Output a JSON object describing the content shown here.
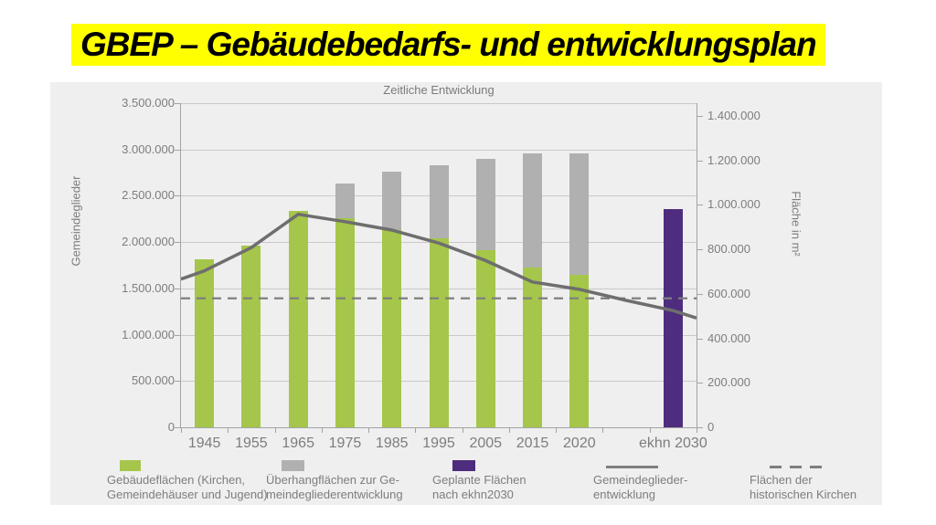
{
  "slide": {
    "title": "GBEP – Gebäudebedarfs- und entwicklungsplan"
  },
  "colors": {
    "highlight": "#ffff00",
    "green": "#a5c64a",
    "gray": "#b0b0b0",
    "purple": "#4e2d7e",
    "line": "#6e6e6e",
    "dashed": "#7f7f7f",
    "text": "#7d7d7d",
    "grid": "#c9c9c9",
    "axis": "#a3a3a3",
    "panel": "#efefef"
  },
  "chart": {
    "title": "Zeitliche Entwicklung",
    "left_axis": {
      "title": "Gemeindeglieder",
      "tick_labels": [
        "3.500.000",
        "3.000.000",
        "2.500.000",
        "2.000.000",
        "1.500.000",
        "1.000.000",
        "500.000",
        "0"
      ]
    },
    "right_axis": {
      "title": "Fläche in m²",
      "tick_labels": [
        "1.400.000",
        "1.200.000",
        "1.000.000",
        "800.000",
        "600.000",
        "400.000",
        "200.000",
        "0"
      ]
    }
  },
  "chart_data": {
    "type": "bar",
    "title": "Zeitliche Entwicklung",
    "categories": [
      "1945",
      "1955",
      "1965",
      "1975",
      "1985",
      "1995",
      "2005",
      "2015",
      "2020",
      "",
      "ekhn 2030"
    ],
    "left_ylim": [
      0,
      3500000
    ],
    "right_ylim": [
      0,
      1400000
    ],
    "grid": "horizontal",
    "legend_position": "bottom",
    "series": [
      {
        "name": "Gebäudeflächen (Kirchen, Gemeindehäuser und Jugend)",
        "type": "bar",
        "stack": "flaechen",
        "axis": "right",
        "color_key": "green",
        "values": [
          755000,
          815000,
          975000,
          940000,
          885000,
          850000,
          795000,
          720000,
          685000,
          null,
          null
        ]
      },
      {
        "name": "Überhangflächen zur Gemeindegliederentwicklung",
        "type": "bar",
        "stack": "flaechen",
        "axis": "right",
        "color_key": "gray",
        "values": [
          null,
          null,
          null,
          155000,
          265000,
          330000,
          410000,
          510000,
          545000,
          null,
          null
        ]
      },
      {
        "name": "Geplante Flächen nach ekhn2030",
        "type": "bar",
        "stack": "flaechen",
        "axis": "right",
        "color_key": "purple",
        "values": [
          null,
          null,
          null,
          null,
          null,
          null,
          null,
          null,
          null,
          null,
          980000
        ]
      },
      {
        "name": "Gemeindegliederentwicklung",
        "type": "line",
        "axis": "left",
        "color_key": "line",
        "values": [
          1690000,
          1940000,
          2300000,
          2220000,
          2130000,
          1990000,
          1800000,
          1570000,
          1490000,
          1370000,
          1260000
        ],
        "edge_left": 1600000,
        "edge_right": 1180000
      },
      {
        "name": "Flächen der historischen Kirchen",
        "type": "dashed_line",
        "axis": "right",
        "constant": 580000
      }
    ]
  },
  "legend": {
    "items": [
      {
        "swatch": "green-rect",
        "line1": "Gebäudeflächen (Kirchen,",
        "line2": "Gemeindehäuser und Jugend)"
      },
      {
        "swatch": "gray-rect",
        "line1": "Überhangflächen zur Ge-",
        "line2": "meindegliederentwicklung"
      },
      {
        "swatch": "purple-rect",
        "line1": "Geplante Flächen",
        "line2": "nach ekhn2030"
      },
      {
        "swatch": "solid-line",
        "line1": "Gemeindeglieder-",
        "line2": "entwicklung"
      },
      {
        "swatch": "dashed-line",
        "line1": "Flächen der",
        "line2": "historischen Kirchen"
      }
    ]
  }
}
